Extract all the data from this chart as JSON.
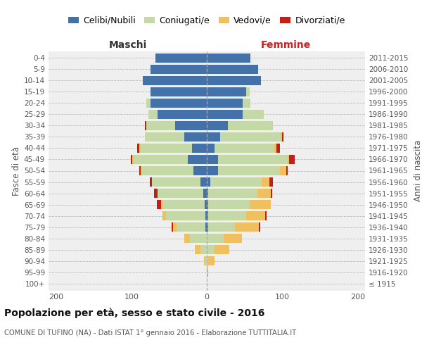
{
  "age_groups": [
    "100+",
    "95-99",
    "90-94",
    "85-89",
    "80-84",
    "75-79",
    "70-74",
    "65-69",
    "60-64",
    "55-59",
    "50-54",
    "45-49",
    "40-44",
    "35-39",
    "30-34",
    "25-29",
    "20-24",
    "15-19",
    "10-14",
    "5-9",
    "0-4"
  ],
  "birth_years": [
    "≤ 1915",
    "1916-1920",
    "1921-1925",
    "1926-1930",
    "1931-1935",
    "1936-1940",
    "1941-1945",
    "1946-1950",
    "1951-1955",
    "1956-1960",
    "1961-1965",
    "1966-1970",
    "1971-1975",
    "1976-1980",
    "1981-1985",
    "1986-1990",
    "1991-1995",
    "1996-2000",
    "2001-2005",
    "2006-2010",
    "2011-2015"
  ],
  "maschi": {
    "celibi": [
      0,
      0,
      0,
      0,
      0,
      2,
      2,
      3,
      5,
      8,
      18,
      25,
      20,
      30,
      42,
      65,
      75,
      75,
      85,
      75,
      68
    ],
    "coniugati": [
      0,
      0,
      2,
      8,
      22,
      38,
      52,
      55,
      60,
      65,
      68,
      72,
      68,
      52,
      38,
      12,
      5,
      0,
      0,
      0,
      0
    ],
    "vedovi": [
      0,
      0,
      2,
      8,
      8,
      5,
      5,
      3,
      0,
      0,
      2,
      2,
      2,
      0,
      0,
      0,
      0,
      0,
      0,
      0,
      0
    ],
    "divorziati": [
      0,
      0,
      0,
      0,
      0,
      2,
      0,
      5,
      5,
      3,
      2,
      2,
      2,
      0,
      2,
      0,
      0,
      0,
      0,
      0,
      0
    ]
  },
  "femmine": {
    "nubili": [
      0,
      0,
      0,
      0,
      0,
      2,
      2,
      2,
      2,
      5,
      15,
      15,
      10,
      18,
      28,
      48,
      48,
      52,
      72,
      68,
      58
    ],
    "coniugate": [
      0,
      0,
      2,
      10,
      22,
      35,
      50,
      55,
      65,
      68,
      82,
      92,
      80,
      80,
      60,
      28,
      10,
      5,
      0,
      0,
      0
    ],
    "vedove": [
      0,
      2,
      8,
      20,
      25,
      32,
      25,
      28,
      18,
      10,
      8,
      2,
      2,
      2,
      0,
      0,
      0,
      0,
      0,
      0,
      0
    ],
    "divorziate": [
      0,
      0,
      0,
      0,
      0,
      2,
      2,
      0,
      2,
      5,
      2,
      8,
      5,
      2,
      0,
      0,
      0,
      0,
      0,
      0,
      0
    ]
  },
  "colors": {
    "celibi": "#4472a8",
    "coniugati": "#c5d8a8",
    "vedovi": "#f0c060",
    "divorziati": "#c0201a"
  },
  "title": "Popolazione per età, sesso e stato civile - 2016",
  "subtitle": "COMUNE DI TUFINO (NA) - Dati ISTAT 1° gennaio 2016 - Elaborazione TUTTITALIA.IT",
  "xlabel_left": "Maschi",
  "xlabel_right": "Femmine",
  "ylabel_left": "Fasce di età",
  "ylabel_right": "Anni di nascita",
  "xlim": 210,
  "legend_labels": [
    "Celibi/Nubili",
    "Coniugati/e",
    "Vedovi/e",
    "Divorziati/e"
  ],
  "bg_color": "#efefef"
}
